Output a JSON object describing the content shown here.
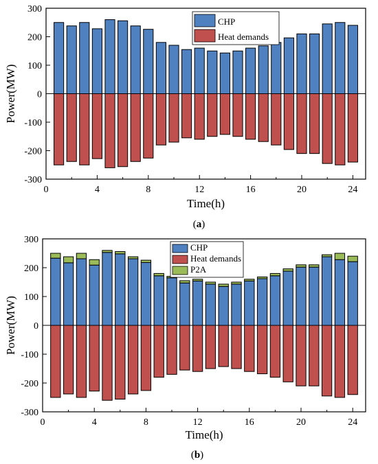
{
  "chart_data": [
    {
      "type": "bar",
      "panel_label": "(a)",
      "panel_letter": "a",
      "xlabel": "Time(h)",
      "ylabel": "Power(MW)",
      "xlim": [
        0,
        25
      ],
      "ylim": [
        -300,
        300
      ],
      "xticks": [
        "0",
        "4",
        "8",
        "12",
        "16",
        "20",
        "24"
      ],
      "yticks": [
        "300",
        "200",
        "100",
        "0",
        "-100",
        "-200",
        "-300"
      ],
      "legend_position": "top-center",
      "x": [
        1,
        2,
        3,
        4,
        5,
        6,
        7,
        8,
        9,
        10,
        11,
        12,
        13,
        14,
        15,
        16,
        17,
        18,
        19,
        20,
        21,
        22,
        23,
        24
      ],
      "series": [
        {
          "name": "CHP",
          "color": "#4f81c0",
          "values": [
            250,
            238,
            250,
            228,
            260,
            256,
            238,
            226,
            180,
            170,
            155,
            160,
            150,
            143,
            150,
            160,
            168,
            180,
            196,
            210,
            210,
            245,
            250,
            240
          ]
        },
        {
          "name": "Heat demands",
          "color": "#c0504d",
          "values": [
            -250,
            -238,
            -250,
            -228,
            -260,
            -256,
            -238,
            -226,
            -180,
            -170,
            -155,
            -160,
            -150,
            -143,
            -150,
            -160,
            -168,
            -180,
            -196,
            -210,
            -210,
            -245,
            -250,
            -240
          ]
        }
      ]
    },
    {
      "type": "bar",
      "panel_label": "(b)",
      "panel_letter": "b",
      "xlabel": "Time(h)",
      "ylabel": "Power(MW)",
      "xlim": [
        0,
        25
      ],
      "ylim": [
        -300,
        300
      ],
      "xticks": [
        "0",
        "4",
        "8",
        "12",
        "16",
        "20",
        "24"
      ],
      "yticks": [
        "300",
        "200",
        "100",
        "0",
        "-100",
        "-200",
        "-300"
      ],
      "legend_position": "top-center",
      "stacked": true,
      "x": [
        1,
        2,
        3,
        4,
        5,
        6,
        7,
        8,
        9,
        10,
        11,
        12,
        13,
        14,
        15,
        16,
        17,
        18,
        19,
        20,
        21,
        22,
        23,
        24
      ],
      "series": [
        {
          "name": "CHP",
          "color": "#4f81c0",
          "values": [
            233,
            217,
            231,
            209,
            253,
            248,
            231,
            218,
            172,
            165,
            147,
            154,
            143,
            135,
            143,
            154,
            162,
            172,
            188,
            202,
            202,
            238,
            228,
            221
          ]
        },
        {
          "name": "Heat demands",
          "color": "#c0504d",
          "values": [
            -250,
            -238,
            -250,
            -228,
            -260,
            -256,
            -238,
            -226,
            -180,
            -170,
            -155,
            -160,
            -150,
            -143,
            -150,
            -160,
            -168,
            -180,
            -196,
            -210,
            -210,
            -245,
            -250,
            -240
          ]
        },
        {
          "name": "P2A",
          "color": "#9bbb59",
          "values": [
            17,
            21,
            19,
            19,
            7,
            8,
            7,
            8,
            8,
            5,
            8,
            6,
            7,
            8,
            7,
            6,
            6,
            8,
            8,
            8,
            8,
            7,
            22,
            19
          ]
        }
      ]
    }
  ]
}
